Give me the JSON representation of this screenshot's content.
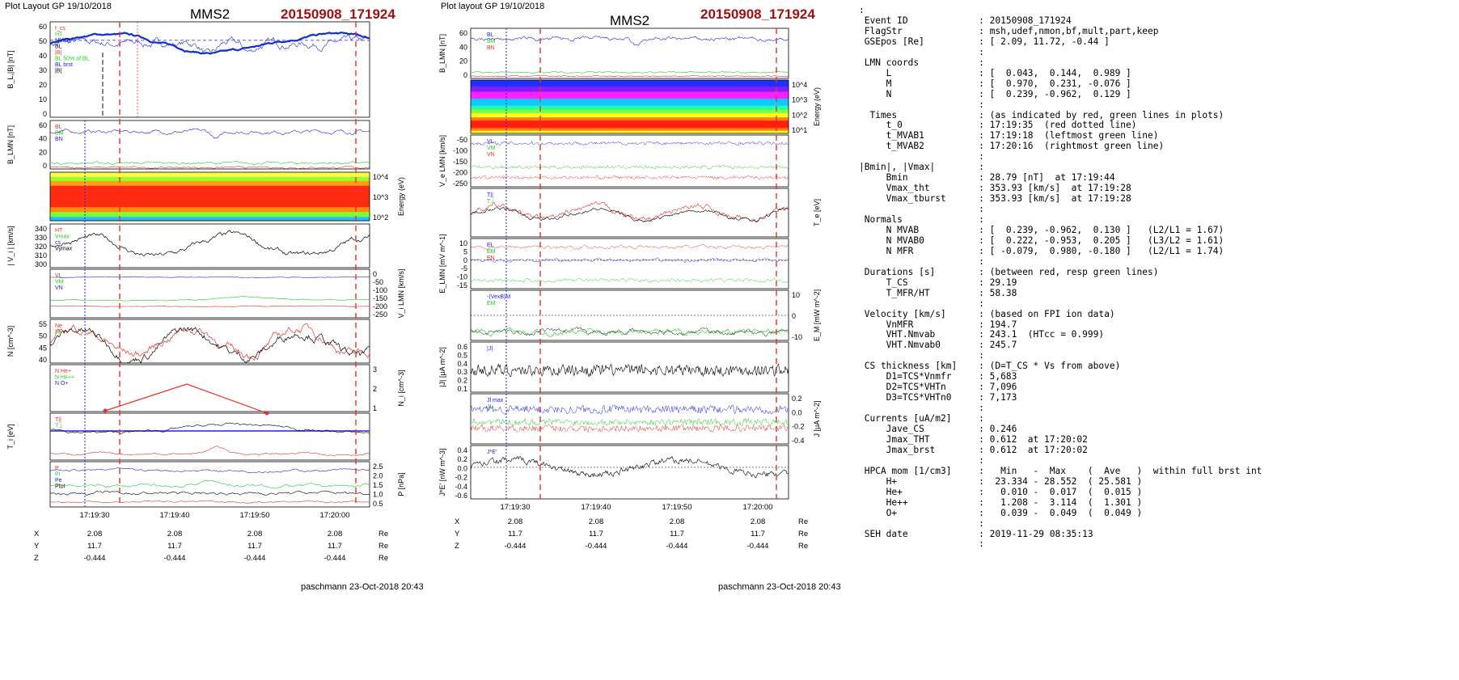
{
  "left_header": {
    "tool": "Plot Layout GP 19/10/2018",
    "spacecraft": "MMS2",
    "event": "20150908_171924"
  },
  "mid_header": {
    "tool": "Plot layout GP 19/10/2018",
    "spacecraft": "MMS2",
    "event": "20150908_171924"
  },
  "footer": {
    "left": "paschmann 23-Oct-2018 20:43",
    "mid": "paschmann 23-Oct-2018 20:43"
  },
  "colors": {
    "red": "#e8302a",
    "blue": "#2222dd",
    "green": "#22cc22",
    "black": "#000000",
    "event_red": "#a01010"
  },
  "left_panels": [
    {
      "ylabel": "B_L,|B| [nT]",
      "ticks": [
        "60",
        "50",
        "40",
        "30",
        "20",
        "10",
        "0"
      ],
      "legend": [
        "t_cs",
        "HT",
        "MVAB",
        "BL",
        "|B|",
        "BL 50% of BL",
        "BL brst",
        "|B|"
      ]
    },
    {
      "ylabel": "B_LMN [nT]",
      "ticks": [
        "60",
        "40",
        "20",
        "0"
      ],
      "legend": [
        "BL",
        "BM",
        "BN"
      ]
    },
    {
      "ylabel": "Energy (eV)",
      "ticks": [
        "10^4",
        "10^3",
        "10^2"
      ],
      "legend": []
    },
    {
      "ylabel": "| V_i | [km/s]",
      "ticks": [
        "340",
        "330",
        "320",
        "310",
        "300"
      ],
      "legend": [
        "HT",
        "Vmax",
        "cs",
        "Vymax"
      ]
    },
    {
      "ylabel": "V_i LMN [km/s]",
      "ticks": [
        "0",
        "-50",
        "-100",
        "-150",
        "-200",
        "-250"
      ],
      "legend": [
        "VL",
        "VM",
        "VN"
      ]
    },
    {
      "ylabel": "N [cm^-3]",
      "ticks": [
        "55",
        "50",
        "45",
        "40"
      ],
      "legend": [
        "Ne",
        "Ni"
      ]
    },
    {
      "ylabel": "N_i [cm^-3]",
      "ticks": [
        "3",
        "2",
        "1"
      ],
      "legend": [
        "N He+",
        "N He++",
        "N O+"
      ]
    },
    {
      "ylabel": "T_i [eV]",
      "ticks": [],
      "legend": [
        "T||",
        "T⊥"
      ]
    },
    {
      "ylabel": "P [nPa]",
      "ticks": [
        "2.5",
        "2.0",
        "1.5",
        "1.0",
        "0.5"
      ],
      "legend": [
        "P",
        "Pi",
        "Pe",
        "Ptot"
      ]
    }
  ],
  "left_xaxis": {
    "ticks": [
      "17:19:30",
      "17:19:40",
      "17:19:50",
      "17:20:00"
    ],
    "rows": [
      [
        "X",
        "2.08",
        "2.08",
        "2.08",
        "2.08",
        "Re"
      ],
      [
        "Y",
        "11.7",
        "11.7",
        "11.7",
        "11.7",
        "Re"
      ],
      [
        "Z",
        "-0.444",
        "-0.444",
        "-0.444",
        "-0.444",
        "Re"
      ]
    ]
  },
  "mid_panels": [
    {
      "ylabel": "B_LMN [nT]",
      "ticks": [
        "60",
        "40",
        "20",
        "0"
      ],
      "legend": [
        "BL",
        "BM",
        "BN"
      ]
    },
    {
      "ylabel": "Energy (eV)",
      "ticks": [
        "10^4",
        "10^3",
        "10^2",
        "10^1"
      ],
      "legend": []
    },
    {
      "ylabel": "V_e LMN [km/s]",
      "ticks": [
        "-50",
        "-100",
        "-150",
        "-200",
        "-250"
      ],
      "legend": [
        "VL",
        "VM",
        "VN"
      ]
    },
    {
      "ylabel": "T_e [eV]",
      "ticks": [],
      "legend": [
        "T||",
        "T⊥"
      ]
    },
    {
      "ylabel": "E_LMN [mV m^-1]",
      "ticks": [
        "10",
        "5",
        "0",
        "-5",
        "-10",
        "-15"
      ],
      "legend": [
        "EL",
        "EM",
        "EN"
      ]
    },
    {
      "ylabel": "E_M [mW m^-2]",
      "ticks": [
        "10",
        "0",
        "-10"
      ],
      "legend": [
        "-(VexB)M",
        "EM"
      ]
    },
    {
      "ylabel": "|J| [μA m^-2]",
      "ticks": [
        "0.6",
        "0.5",
        "0.4",
        "0.3",
        "0.2",
        "0.1"
      ],
      "legend": [
        "|J|"
      ]
    },
    {
      "ylabel": "J [μA m^-2]",
      "ticks": [
        "0.2",
        "0.0",
        "-0.2",
        "-0.4"
      ],
      "legend": [
        "Jl max",
        "JL"
      ]
    },
    {
      "ylabel": "J*E' [nW m^-3]",
      "ticks": [
        "0.4",
        "0.2",
        "0.0",
        "-0.2",
        "-0.4",
        "-0.6"
      ],
      "legend": [
        "J*E'"
      ]
    }
  ],
  "mid_xaxis": {
    "ticks": [
      "17:19:30",
      "17:19:40",
      "17:19:50",
      "17:20:00"
    ],
    "rows": [
      [
        "X",
        "2.08",
        "2.08",
        "2.08",
        "2.08",
        "Re"
      ],
      [
        "Y",
        "11.7",
        "11.7",
        "11.7",
        "11.7",
        "Re"
      ],
      [
        "Z",
        "-0.444",
        "-0.444",
        "-0.444",
        "-0.444",
        "Re"
      ]
    ]
  },
  "info_lines": [
    ":",
    " Event ID             : 20150908_171924",
    " FlagStr              : msh,udef,nmon,bf,mult,part,keep",
    " GSEpos [Re]          : [ 2.09, 11.72, -0.44 ]",
    "                      :",
    " LMN coords           :",
    "     L                : [  0.043,  0.144,  0.989 ]",
    "     M                : [  0.970,  0.231, -0.076 ]",
    "     N                : [  0.239, -0.962,  0.129 ]",
    "                      :",
    "  Times               : (as indicated by red, green lines in plots)",
    "     t_0              : 17:19:35  (red dotted line)",
    "     t_MVAB1          : 17:19:18  (leftmost green line)",
    "     t_MVAB2          : 17:20:16  (rightmost green line)",
    "                      :",
    "|Bmin|, |Vmax|        :",
    "     Bmin             : 28.79 [nT]  at 17:19:44",
    "     Vmax_tht         : 353.93 [km/s]  at 17:19:28",
    "     Vmax_tburst      : 353.93 [km/s]  at 17:19:28",
    "                      :",
    " Normals              :",
    "     N MVAB           : [  0.239, -0.962,  0.130 ]   (L2/L1 = 1.67)",
    "     N MVAB0          : [  0.222, -0.953,  0.205 ]   (L3/L2 = 1.61)",
    "     N MFR            : [ -0.079,  0.980, -0.180 ]   (L2/L1 = 1.74)",
    "                      :",
    " Durations [s]        : (between red, resp green lines)",
    "     T_CS             : 29.19",
    "     T_MFR/HT         : 58.38",
    "                      :",
    " Velocity [km/s]      : (based on FPI ion data)",
    "     VnMFR            : 194.7",
    "     VHT.Nmvab        : 243.1  (HTcc = 0.999)",
    "     VHT.Nmvab0       : 245.7",
    "                      :",
    " CS thickness [km]    : (D=T_CS * Vs from above)",
    "     D1=TCS*Vnmfr     : 5,683",
    "     D2=TCS*VHTn      : 7,096",
    "     D3=TCS*VHTn0     : 7,173",
    "                      :",
    " Currents [uA/m2]     :",
    "     Jave_CS          : 0.246",
    "     Jmax_THT         : 0.612  at 17:20:02",
    "     Jmax_brst        : 0.612  at 17:20:02",
    "                      :",
    " HPCA mom [1/cm3]     :   Min   -  Max    (  Ave   )  within full brst int",
    "     H+               :  23.334 - 28.552  ( 25.581 )",
    "     He+              :   0.010 -  0.017  (  0.015 )",
    "     He++             :   1.208 -  3.114  (  1.301 )",
    "     O+               :   0.039 -  0.049  (  0.049 )",
    "                      :",
    " SEH date             : 2019-11-29 08:35:13",
    "                      :"
  ]
}
